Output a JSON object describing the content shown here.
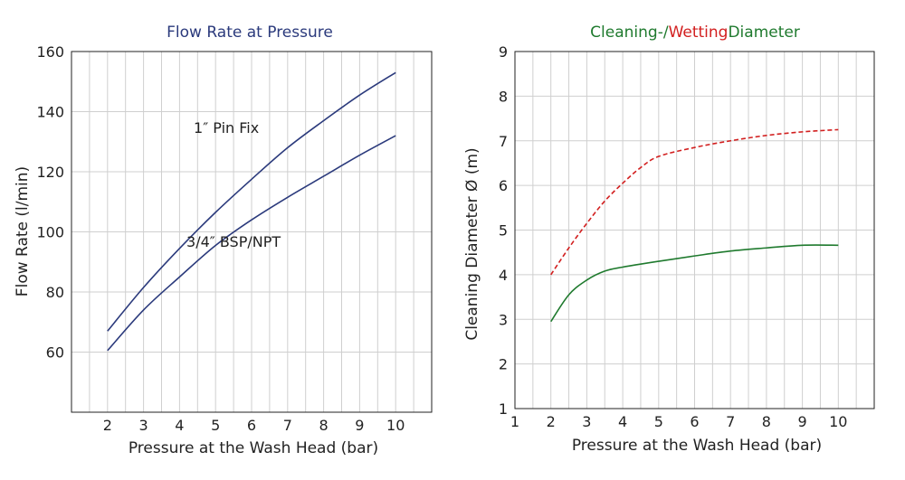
{
  "colors": {
    "navy": "#2b3a7c",
    "green": "#1f7a2e",
    "red": "#d21f1f",
    "grid": "#cfcfcf",
    "frame": "#222222"
  },
  "chart_data": [
    {
      "type": "line",
      "title": "Flow Rate at Pressure",
      "title_color": "#2b3a7c",
      "xlabel": "Pressure at the Wash Head (bar)",
      "ylabel": "Flow Rate (l/min)",
      "xlim": [
        1,
        11
      ],
      "ylim": [
        40,
        160
      ],
      "xticks": [
        2,
        3,
        4,
        5,
        6,
        7,
        8,
        9,
        10
      ],
      "yticks": [
        60,
        80,
        100,
        120,
        140,
        160
      ],
      "x_minor_step": 0.5,
      "y_grid_step": 20,
      "grid": true,
      "annotations": [
        {
          "text": "1″ Pin Fix",
          "x": 5.3,
          "y": 133
        },
        {
          "text": "3/4″ BSP/NPT",
          "x": 5.5,
          "y": 95
        }
      ],
      "series": [
        {
          "name": "1″ Pin Fix",
          "color": "#2b3a7c",
          "style": "solid",
          "points": [
            [
              2,
              67
            ],
            [
              3,
              81.5
            ],
            [
              4,
              94.5
            ],
            [
              5,
              106.5
            ],
            [
              6,
              117.5
            ],
            [
              7,
              128
            ],
            [
              8,
              137
            ],
            [
              9,
              145.5
            ],
            [
              10,
              153
            ]
          ]
        },
        {
          "name": "3/4″ BSP/NPT",
          "color": "#2b3a7c",
          "style": "solid",
          "points": [
            [
              2,
              60.5
            ],
            [
              3,
              74
            ],
            [
              4,
              85
            ],
            [
              5,
              95.5
            ],
            [
              6,
              104
            ],
            [
              7,
              111.5
            ],
            [
              8,
              118.5
            ],
            [
              9,
              125.5
            ],
            [
              10,
              132
            ]
          ]
        }
      ]
    },
    {
      "type": "line",
      "title_parts": [
        {
          "text": "Cleaning-/",
          "color": "#1f7a2e"
        },
        {
          "text": "Wetting",
          "color": "#d21f1f"
        },
        {
          "text": "Diameter",
          "color": "#1f7a2e"
        }
      ],
      "xlabel": "Pressure at the Wash Head (bar)",
      "ylabel": "Cleaning Diameter Ø (m)",
      "xlim": [
        1,
        11
      ],
      "ylim": [
        1,
        9
      ],
      "xticks": [
        1,
        2,
        3,
        4,
        5,
        6,
        7,
        8,
        9,
        10
      ],
      "yticks": [
        1,
        2,
        3,
        4,
        5,
        6,
        7,
        8,
        9
      ],
      "x_minor_step": 0.5,
      "y_grid_step": 1,
      "grid": true,
      "series": [
        {
          "color": "#d21f1f",
          "style": "dashed",
          "points": [
            [
              2,
              4.0
            ],
            [
              2.5,
              4.6
            ],
            [
              3,
              5.15
            ],
            [
              3.5,
              5.65
            ],
            [
              4,
              6.05
            ],
            [
              4.5,
              6.4
            ],
            [
              5,
              6.65
            ],
            [
              6,
              6.85
            ],
            [
              7,
              7.0
            ],
            [
              8,
              7.12
            ],
            [
              9,
              7.2
            ],
            [
              10,
              7.25
            ]
          ]
        },
        {
          "color": "#1f7a2e",
          "style": "solid",
          "points": [
            [
              2,
              2.95
            ],
            [
              2.5,
              3.55
            ],
            [
              3,
              3.88
            ],
            [
              3.5,
              4.08
            ],
            [
              4,
              4.17
            ],
            [
              5,
              4.3
            ],
            [
              6,
              4.42
            ],
            [
              7,
              4.53
            ],
            [
              8,
              4.6
            ],
            [
              9,
              4.66
            ],
            [
              10,
              4.66
            ]
          ]
        }
      ]
    }
  ]
}
